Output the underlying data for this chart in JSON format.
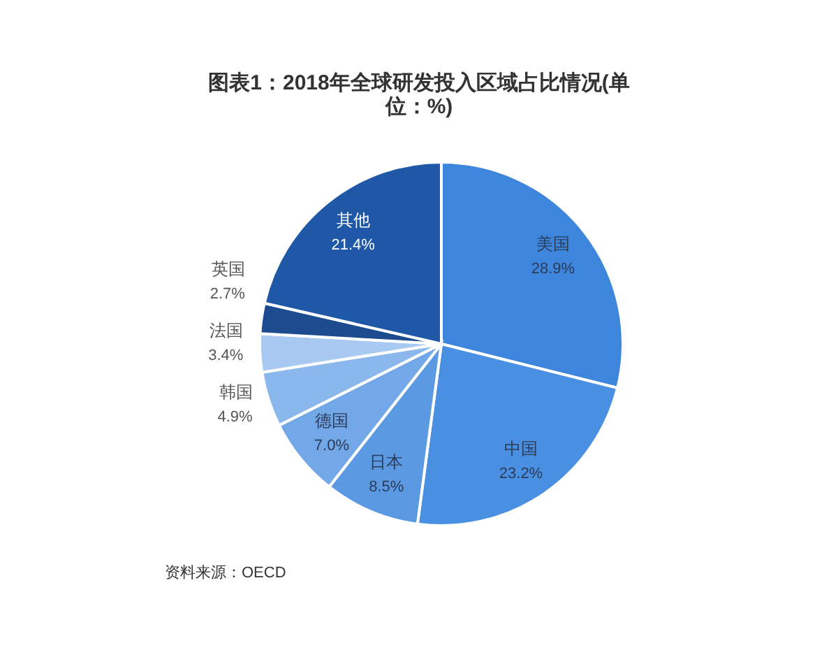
{
  "chart_data": {
    "type": "pie",
    "title": "图表1：2018年全球研发投入区域占比情况(单位：%)",
    "categories": [
      "美国",
      "中国",
      "日本",
      "德国",
      "韩国",
      "法国",
      "英国",
      "其他"
    ],
    "values": [
      28.9,
      23.2,
      8.5,
      7.0,
      4.9,
      3.4,
      2.7,
      21.4
    ],
    "value_labels": [
      "28.9%",
      "23.2%",
      "8.5%",
      "7.0%",
      "4.9%",
      "3.4%",
      "2.7%",
      "21.4%"
    ],
    "colors": [
      "#3d86dc",
      "#4a90e2",
      "#5b9ae3",
      "#72a7e8",
      "#8ab7ec",
      "#a8c9f1",
      "#1c4b8f",
      "#1f58a6"
    ],
    "annotations": [
      "资料来源：OECD"
    ]
  }
}
